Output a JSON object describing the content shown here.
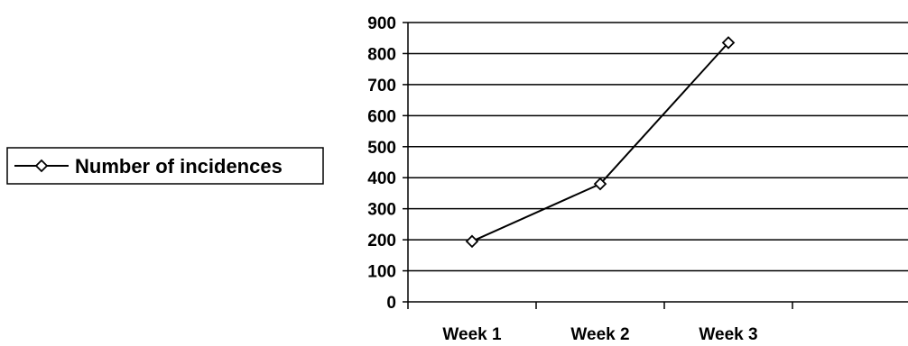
{
  "chart_data": {
    "type": "line",
    "categories": [
      "Week 1",
      "Week 2",
      "Week 3"
    ],
    "series": [
      {
        "name": "Number of incidences",
        "values": [
          195,
          380,
          835
        ]
      }
    ],
    "title": "",
    "xlabel": "",
    "ylabel": "",
    "ylim": [
      0,
      900
    ],
    "yticks": [
      "0",
      "100",
      "200",
      "300",
      "400",
      "500",
      "600",
      "700",
      "800",
      "900"
    ],
    "grid": true,
    "legend": "left",
    "marker": "diamond-open",
    "colors": {
      "line": "#000000",
      "grid": "#000000",
      "background": "#ffffff"
    }
  }
}
